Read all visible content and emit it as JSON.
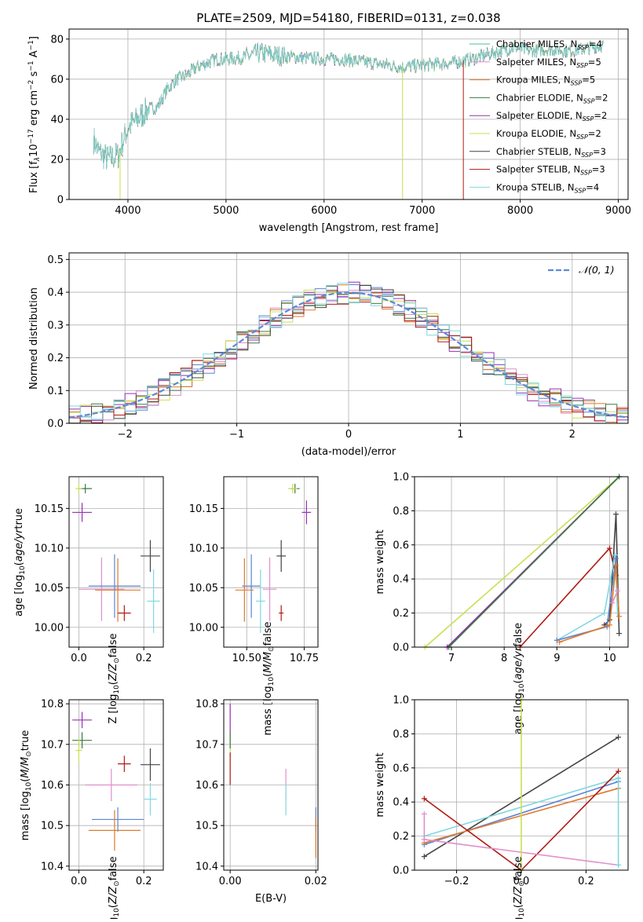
{
  "colors": {
    "chabrier_miles": "#4dbea0",
    "salpeter_miles": "#e08ecb",
    "kroupa_miles": "#e07a2a",
    "chabrier_elodie": "#3c7a44",
    "salpeter_elodie": "#9a2fb5",
    "kroupa_elodie": "#c8e052",
    "chabrier_stelib": "#444444",
    "salpeter_stelib": "#b01a14",
    "kroupa_stelib": "#7fd8e0",
    "blue": "#5b83d6",
    "gaussian": "#5b8ad6"
  },
  "chart_data": [
    {
      "id": "spectrum",
      "type": "line",
      "title": "PLATE=2509, MJD=54180, FIBERID=0131, z=0.038",
      "xlabel": "wavelength [Angstrom, rest frame]",
      "ylabel_main": "Flux [f",
      "ylabel_rest": "10",
      "xlim": [
        3400,
        9100
      ],
      "ylim": [
        0,
        85
      ],
      "xticks": [
        4000,
        5000,
        6000,
        7000,
        8000,
        9000
      ],
      "yticks": [
        0,
        20,
        40,
        60,
        80
      ],
      "legend_position": "right",
      "series": [
        {
          "name": "Chabrier MILES, N_SSP=4",
          "label": "Chabrier MILES, N",
          "n": "4",
          "color_key": "chabrier_miles"
        },
        {
          "name": "Salpeter MILES, N_SSP=5",
          "label": "Salpeter MILES, N",
          "n": "5",
          "color_key": "salpeter_miles"
        },
        {
          "name": "Kroupa MILES, N_SSP=5",
          "label": "Kroupa MILES, N",
          "n": "5",
          "color_key": "kroupa_miles"
        },
        {
          "name": "Chabrier ELODIE, N_SSP=2",
          "label": "Chabrier ELODIE, N",
          "n": "2",
          "color_key": "chabrier_elodie"
        },
        {
          "name": "Salpeter ELODIE, N_SSP=2",
          "label": "Salpeter ELODIE, N",
          "n": "2",
          "color_key": "salpeter_elodie"
        },
        {
          "name": "Kroupa ELODIE, N_SSP=2",
          "label": "Kroupa ELODIE, N",
          "n": "2",
          "color_key": "kroupa_elodie"
        },
        {
          "name": "Chabrier STELIB, N_SSP=3",
          "label": "Chabrier STELIB, N",
          "n": "3",
          "color_key": "chabrier_stelib"
        },
        {
          "name": "Salpeter STELIB, N_SSP=3",
          "label": "Salpeter STELIB, N",
          "n": "3",
          "color_key": "salpeter_stelib"
        },
        {
          "name": "Kroupa STELIB, N_SSP=4",
          "label": "Kroupa STELIB, N",
          "n": "4",
          "color_key": "kroupa_stelib"
        }
      ],
      "subscript_ssp": "SSP",
      "continuum": [
        [
          3650,
          30
        ],
        [
          3700,
          24
        ],
        [
          3800,
          20
        ],
        [
          3900,
          22
        ],
        [
          4000,
          36
        ],
        [
          4100,
          40
        ],
        [
          4200,
          45
        ],
        [
          4300,
          46
        ],
        [
          4400,
          55
        ],
        [
          4500,
          60
        ],
        [
          4600,
          62
        ],
        [
          4700,
          66
        ],
        [
          4800,
          68
        ],
        [
          4900,
          70
        ],
        [
          5000,
          70
        ],
        [
          5200,
          71
        ],
        [
          5350,
          73
        ],
        [
          5500,
          72
        ],
        [
          5700,
          71
        ],
        [
          6000,
          70
        ],
        [
          6200,
          70
        ],
        [
          6500,
          68
        ],
        [
          6800,
          66
        ],
        [
          7000,
          67
        ],
        [
          7300,
          68
        ],
        [
          7500,
          70
        ],
        [
          7800,
          74
        ],
        [
          7950,
          76
        ],
        [
          8100,
          74
        ],
        [
          8300,
          75
        ],
        [
          8500,
          74
        ],
        [
          8750,
          76
        ],
        [
          8850,
          77
        ]
      ],
      "dropouts": [
        {
          "x": 3920,
          "color_key": "kroupa_elodie"
        },
        {
          "x": 6800,
          "color_key": "kroupa_elodie"
        },
        {
          "x": 7420,
          "color_key": "salpeter_stelib"
        }
      ]
    },
    {
      "id": "residual-histogram",
      "type": "bar",
      "xlabel": "(data-model)/error",
      "ylabel": "Normed distribution",
      "xlim": [
        -2.5,
        2.5
      ],
      "ylim": [
        0,
        0.52
      ],
      "xticks": [
        -2,
        -1,
        0,
        1,
        2
      ],
      "yticks": [
        0.0,
        0.1,
        0.2,
        0.3,
        0.4,
        0.5
      ],
      "legend_label": "𝒩(0, 1)",
      "bin_width": 0.1
    },
    {
      "id": "age-vs-z",
      "type": "scatter",
      "xlabel": "Z [log",
      "ylabel": "age  [log",
      "xlim": [
        -0.03,
        0.26
      ],
      "ylim": [
        9.975,
        10.19
      ],
      "xticks": [
        0.0,
        0.2
      ],
      "yticks": [
        10.0,
        10.05,
        10.1,
        10.15
      ],
      "points": [
        {
          "x": 0.02,
          "y": 10.175,
          "xerr": 0.02,
          "yerr": 0.006,
          "color_key": "chabrier_elodie"
        },
        {
          "x": 0.0,
          "y": 10.175,
          "xerr": 0.01,
          "yerr": 0.006,
          "color_key": "kroupa_elodie"
        },
        {
          "x": 0.01,
          "y": 10.145,
          "xerr": 0.03,
          "yerr": 0.012,
          "color_key": "salpeter_elodie"
        },
        {
          "x": 0.07,
          "y": 10.048,
          "xerr": 0.07,
          "yerr": 0.04,
          "color_key": "salpeter_miles"
        },
        {
          "x": 0.11,
          "y": 10.052,
          "xerr": 0.08,
          "yerr": 0.04,
          "color_key": "blue"
        },
        {
          "x": 0.12,
          "y": 10.047,
          "xerr": 0.07,
          "yerr": 0.04,
          "color_key": "kroupa_miles"
        },
        {
          "x": 0.14,
          "y": 10.018,
          "xerr": 0.02,
          "yerr": 0.01,
          "color_key": "salpeter_stelib"
        },
        {
          "x": 0.22,
          "y": 10.09,
          "xerr": 0.03,
          "yerr": 0.02,
          "color_key": "chabrier_stelib"
        },
        {
          "x": 0.23,
          "y": 10.033,
          "xerr": 0.02,
          "yerr": 0.04,
          "color_key": "kroupa_stelib"
        }
      ]
    },
    {
      "id": "age-vs-mass",
      "type": "scatter",
      "xlabel": "mass [log",
      "xlim": [
        10.4,
        10.81
      ],
      "ylim": [
        9.975,
        10.19
      ],
      "xticks": [
        10.5,
        10.75
      ],
      "yticks": [
        10.0,
        10.05,
        10.1,
        10.15
      ],
      "points": [
        {
          "x": 10.71,
          "y": 10.175,
          "xerr": 0.02,
          "yerr": 0.006,
          "color_key": "chabrier_elodie"
        },
        {
          "x": 10.7,
          "y": 10.175,
          "xerr": 0.02,
          "yerr": 0.006,
          "color_key": "kroupa_elodie"
        },
        {
          "x": 10.76,
          "y": 10.145,
          "xerr": 0.02,
          "yerr": 0.015,
          "color_key": "salpeter_elodie"
        },
        {
          "x": 10.6,
          "y": 10.048,
          "xerr": 0.03,
          "yerr": 0.04,
          "color_key": "salpeter_miles"
        },
        {
          "x": 10.52,
          "y": 10.052,
          "xerr": 0.04,
          "yerr": 0.04,
          "color_key": "blue"
        },
        {
          "x": 10.49,
          "y": 10.047,
          "xerr": 0.04,
          "yerr": 0.04,
          "color_key": "kroupa_miles"
        },
        {
          "x": 10.65,
          "y": 10.018,
          "xerr": 0.01,
          "yerr": 0.01,
          "color_key": "salpeter_stelib"
        },
        {
          "x": 10.65,
          "y": 10.09,
          "xerr": 0.02,
          "yerr": 0.02,
          "color_key": "chabrier_stelib"
        },
        {
          "x": 10.56,
          "y": 10.033,
          "xerr": 0.02,
          "yerr": 0.04,
          "color_key": "kroupa_stelib"
        }
      ]
    },
    {
      "id": "mass-weight-vs-age",
      "type": "line",
      "xlabel": "age  [log",
      "ylabel": "mass weight",
      "xlim": [
        6.3,
        10.35
      ],
      "ylim": [
        0,
        1
      ],
      "xticks": [
        7,
        8,
        9,
        10
      ],
      "yticks": [
        0.0,
        0.2,
        0.4,
        0.6,
        0.8,
        1.0
      ],
      "series": [
        {
          "color_key": "kroupa_elodie",
          "x": [
            6.5,
            10.18
          ],
          "y": [
            0.0,
            1.0
          ]
        },
        {
          "color_key": "salpeter_elodie",
          "x": [
            6.92,
            10.18
          ],
          "y": [
            0.0,
            1.0
          ]
        },
        {
          "color_key": "chabrier_elodie",
          "x": [
            6.95,
            10.18
          ],
          "y": [
            0.0,
            1.0
          ]
        },
        {
          "color_key": "salpeter_stelib",
          "x": [
            8.3,
            10.0,
            10.12
          ],
          "y": [
            0.0,
            0.58,
            0.42
          ]
        },
        {
          "color_key": "chabrier_stelib",
          "x": [
            9.9,
            10.0,
            10.12,
            10.18
          ],
          "y": [
            0.13,
            0.16,
            0.78,
            0.08
          ]
        },
        {
          "color_key": "kroupa_stelib",
          "x": [
            9.0,
            9.9,
            10.1,
            10.15
          ],
          "y": [
            0.04,
            0.2,
            0.54,
            0.2
          ]
        },
        {
          "color_key": "blue",
          "x": [
            9.0,
            9.95,
            10.12
          ],
          "y": [
            0.04,
            0.12,
            0.52
          ]
        },
        {
          "color_key": "kroupa_miles",
          "x": [
            9.05,
            10.0,
            10.12,
            10.18
          ],
          "y": [
            0.03,
            0.13,
            0.48,
            0.18
          ]
        },
        {
          "color_key": "salpeter_miles",
          "x": [
            10.05,
            10.15
          ],
          "y": [
            0.26,
            0.33
          ]
        }
      ]
    },
    {
      "id": "mass-vs-z",
      "type": "scatter",
      "xlabel": "Z [log",
      "ylabel": "mass [log",
      "xlim": [
        -0.03,
        0.26
      ],
      "ylim": [
        10.39,
        10.81
      ],
      "xticks": [
        0.0,
        0.2
      ],
      "yticks": [
        10.4,
        10.5,
        10.6,
        10.7,
        10.8
      ],
      "points": [
        {
          "x": 0.01,
          "y": 10.76,
          "xerr": 0.03,
          "yerr": 0.02,
          "color_key": "salpeter_elodie"
        },
        {
          "x": 0.01,
          "y": 10.71,
          "xerr": 0.03,
          "yerr": 0.02,
          "color_key": "chabrier_elodie"
        },
        {
          "x": 0.0,
          "y": 10.685,
          "xerr": 0.01,
          "yerr": 0.03,
          "color_key": "kroupa_elodie"
        },
        {
          "x": 0.1,
          "y": 10.6,
          "xerr": 0.08,
          "yerr": 0.04,
          "color_key": "salpeter_miles"
        },
        {
          "x": 0.14,
          "y": 10.652,
          "xerr": 0.02,
          "yerr": 0.02,
          "color_key": "salpeter_stelib"
        },
        {
          "x": 0.22,
          "y": 10.65,
          "xerr": 0.03,
          "yerr": 0.04,
          "color_key": "chabrier_stelib"
        },
        {
          "x": 0.22,
          "y": 10.565,
          "xerr": 0.02,
          "yerr": 0.04,
          "color_key": "kroupa_stelib"
        },
        {
          "x": 0.12,
          "y": 10.515,
          "xerr": 0.08,
          "yerr": 0.03,
          "color_key": "blue"
        },
        {
          "x": 0.11,
          "y": 10.488,
          "xerr": 0.08,
          "yerr": 0.05,
          "color_key": "kroupa_miles"
        }
      ]
    },
    {
      "id": "mass-vs-ebv",
      "type": "scatter",
      "xlabel": "E(B-V)",
      "xlim": [
        -0.0015,
        0.0205
      ],
      "ylim": [
        10.39,
        10.81
      ],
      "xticks": [
        0.0,
        0.02
      ],
      "yticks": [
        10.4,
        10.5,
        10.6,
        10.7,
        10.8
      ],
      "points": [
        {
          "x": 0.0,
          "y": 10.76,
          "xerr": 0.0,
          "yerr": 0.04,
          "color_key": "salpeter_elodie"
        },
        {
          "x": 0.0,
          "y": 10.7,
          "xerr": 0.0,
          "yerr": 0.03,
          "color_key": "kroupa_elodie"
        },
        {
          "x": 0.0,
          "y": 10.71,
          "xerr": 0.0,
          "yerr": 0.02,
          "color_key": "chabrier_elodie"
        },
        {
          "x": 0.0,
          "y": 10.64,
          "xerr": 0.0,
          "yerr": 0.04,
          "color_key": "salpeter_stelib"
        },
        {
          "x": 0.013,
          "y": 10.6,
          "xerr": 0.0,
          "yerr": 0.04,
          "color_key": "salpeter_miles"
        },
        {
          "x": 0.013,
          "y": 10.565,
          "xerr": 0.0,
          "yerr": 0.04,
          "color_key": "kroupa_stelib"
        },
        {
          "x": 0.02,
          "y": 10.515,
          "xerr": 0.0,
          "yerr": 0.03,
          "color_key": "blue"
        },
        {
          "x": 0.02,
          "y": 10.47,
          "xerr": 0.0,
          "yerr": 0.05,
          "color_key": "kroupa_miles"
        }
      ]
    },
    {
      "id": "mass-weight-vs-z",
      "type": "line",
      "xlabel": "Z [log",
      "ylabel": "mass weight",
      "xlim": [
        -0.33,
        0.33
      ],
      "ylim": [
        0,
        1
      ],
      "xticks": [
        -0.2,
        0.0,
        0.2
      ],
      "yticks": [
        0.0,
        0.2,
        0.4,
        0.6,
        0.8,
        1.0
      ],
      "series": [
        {
          "color_key": "chabrier_stelib",
          "x": [
            -0.3,
            0.3
          ],
          "y": [
            0.08,
            0.78
          ]
        },
        {
          "color_key": "kroupa_stelib",
          "x": [
            -0.3,
            0.3
          ],
          "y": [
            0.2,
            0.54
          ]
        },
        {
          "color_key": "blue",
          "x": [
            -0.3,
            0.3
          ],
          "y": [
            0.15,
            0.52
          ]
        },
        {
          "color_key": "kroupa_miles",
          "x": [
            -0.3,
            0.3
          ],
          "y": [
            0.16,
            0.48
          ]
        },
        {
          "color_key": "salpeter_stelib",
          "x": [
            -0.3,
            0.0,
            0.3
          ],
          "y": [
            0.42,
            0.0,
            0.58
          ]
        },
        {
          "color_key": "salpeter_miles",
          "x": [
            -0.3,
            0.3
          ],
          "y": [
            0.18,
            0.03
          ]
        },
        {
          "color_key": "kroupa_elodie",
          "x": [
            0.0,
            0.0
          ],
          "y": [
            0.0,
            1.0
          ]
        },
        {
          "color_key": "kroupa_stelib",
          "x": [
            0.3,
            0.3
          ],
          "y": [
            0.03,
            0.54
          ]
        },
        {
          "color_key": "salpeter_miles",
          "x": [
            -0.3,
            -0.3
          ],
          "y": [
            0.18,
            0.33
          ]
        }
      ]
    }
  ]
}
